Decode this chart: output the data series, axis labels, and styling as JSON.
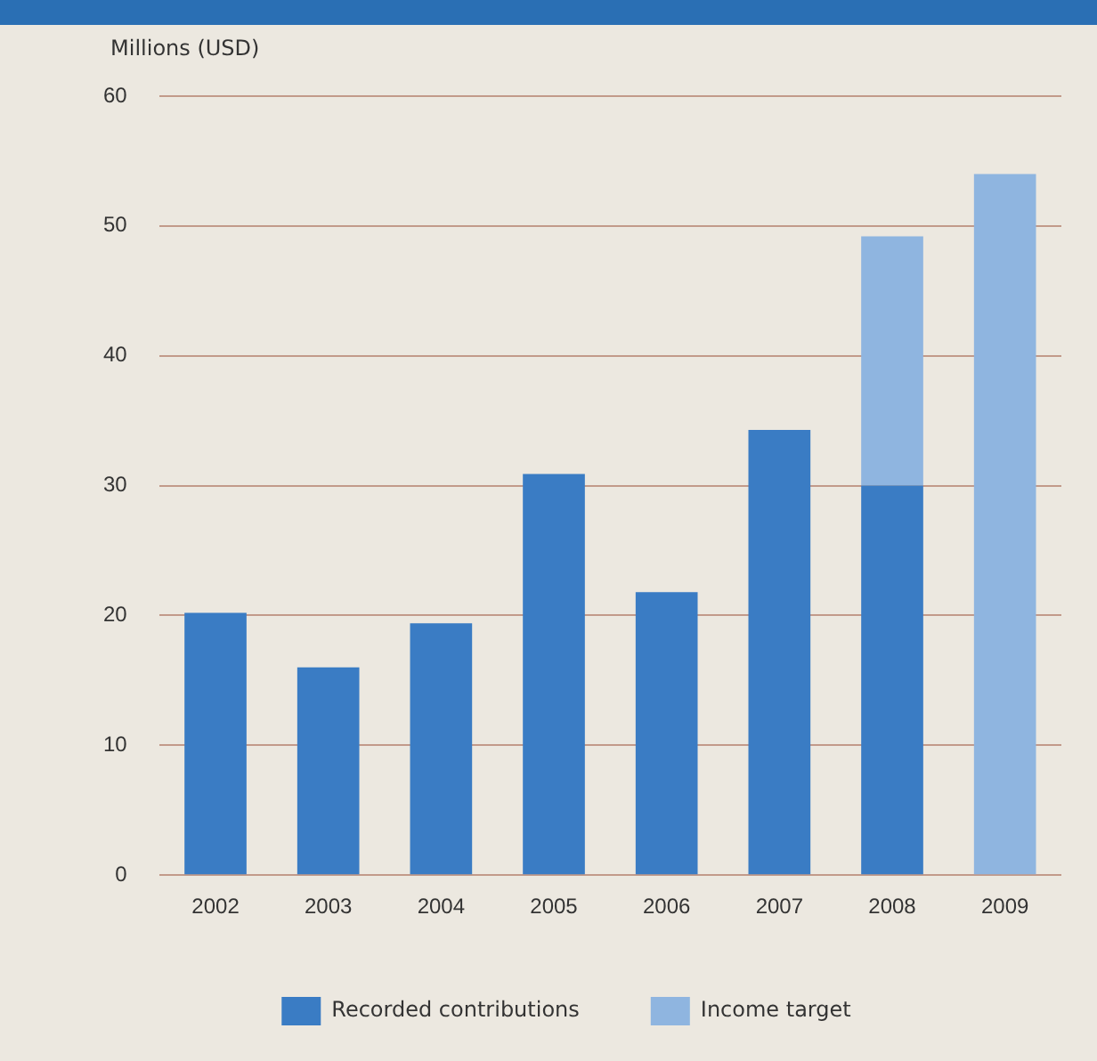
{
  "chart_data": {
    "type": "bar",
    "ylabel": "Millions (USD)",
    "categories": [
      "2002",
      "2003",
      "2004",
      "2005",
      "2006",
      "2007",
      "2008",
      "2009"
    ],
    "stacked": true,
    "series": [
      {
        "name": "Recorded contributions",
        "color": "#3a7cc4",
        "values": [
          20.2,
          16,
          19.4,
          30.9,
          21.8,
          34.3,
          30,
          null
        ]
      },
      {
        "name": "Income target",
        "color": "#8fb5e0",
        "values": [
          null,
          null,
          null,
          null,
          null,
          null,
          19.2,
          54
        ]
      }
    ],
    "ylim": [
      0,
      60
    ],
    "yticks": [
      0,
      10,
      20,
      30,
      40,
      50,
      60
    ],
    "grid": "y",
    "legend": "bottom"
  }
}
